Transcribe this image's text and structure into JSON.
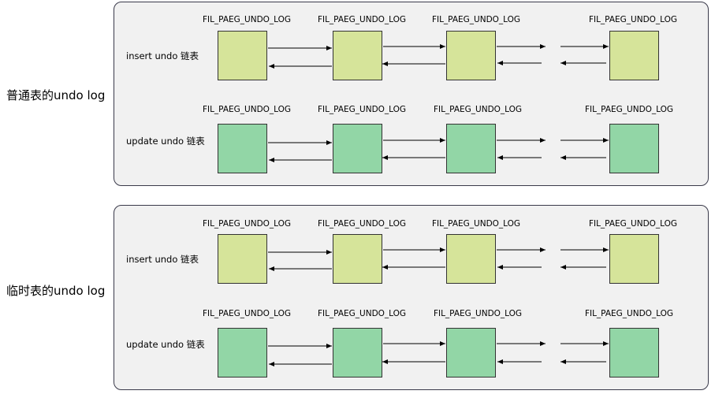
{
  "sections": [
    {
      "label": "普通表的undo log",
      "lists": [
        {
          "label": "insert undo 链表",
          "kind": "ins",
          "pages": [
            "FIL_PAEG_UNDO_LOG",
            "FIL_PAEG_UNDO_LOG",
            "FIL_PAEG_UNDO_LOG",
            "FIL_PAEG_UNDO_LOG"
          ]
        },
        {
          "label": "update undo 链表",
          "kind": "upd",
          "pages": [
            "FIL_PAEG_UNDO_LOG",
            "FIL_PAEG_UNDO_LOG",
            "FIL_PAEG_UNDO_LOG",
            "FIL_PAEG_UNDO_LOG"
          ]
        }
      ]
    },
    {
      "label": "临时表的undo log",
      "lists": [
        {
          "label": "insert undo 链表",
          "kind": "ins",
          "pages": [
            "FIL_PAEG_UNDO_LOG",
            "FIL_PAEG_UNDO_LOG",
            "FIL_PAEG_UNDO_LOG",
            "FIL_PAEG_UNDO_LOG"
          ]
        },
        {
          "label": "update undo 链表",
          "kind": "upd",
          "pages": [
            "FIL_PAEG_UNDO_LOG",
            "FIL_PAEG_UNDO_LOG",
            "FIL_PAEG_UNDO_LOG",
            "FIL_PAEG_UNDO_LOG"
          ]
        }
      ]
    }
  ],
  "colors": {
    "insert_box": "#d6e49a",
    "update_box": "#92d6a6",
    "panel_bg": "#f1f1f1"
  }
}
